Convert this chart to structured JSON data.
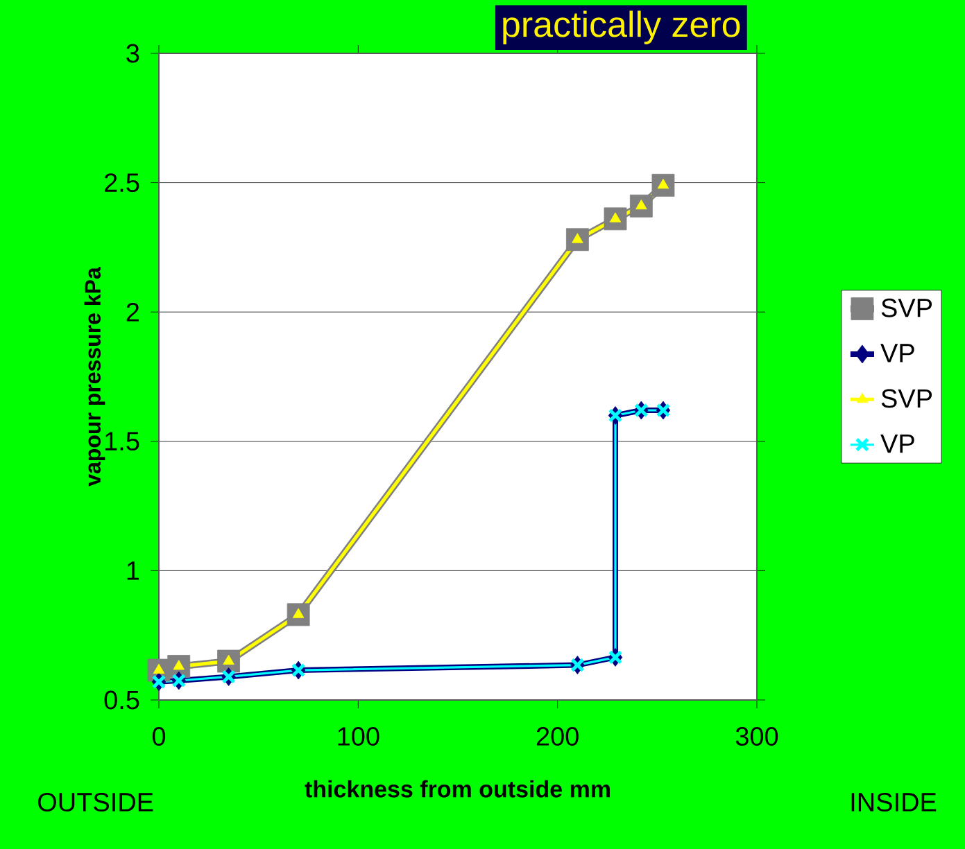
{
  "chart_data": {
    "type": "line",
    "title": "practically zero",
    "xlabel": "thickness from outside mm",
    "ylabel": "vapour pressure kPa",
    "annotations": [
      "OUTSIDE",
      "INSIDE"
    ],
    "x": [
      0,
      10,
      35,
      70,
      210,
      229,
      229,
      242,
      253
    ],
    "series": [
      {
        "name": "SVP",
        "color": "#808080",
        "marker": "square",
        "x": [
          0,
          10,
          35,
          70,
          210,
          229,
          242,
          253
        ],
        "values": [
          0.615,
          0.63,
          0.65,
          0.83,
          2.28,
          2.36,
          2.41,
          2.49
        ]
      },
      {
        "name": "VP",
        "color": "#000080",
        "marker": "diamond",
        "values": [
          0.57,
          0.575,
          0.59,
          0.615,
          0.635,
          0.665,
          1.6,
          1.62,
          1.62
        ]
      },
      {
        "name": "SVP",
        "color": "#ffff00",
        "marker": "triangle",
        "x": [
          0,
          10,
          35,
          70,
          210,
          229,
          242,
          253
        ],
        "values": [
          0.615,
          0.63,
          0.65,
          0.83,
          2.28,
          2.36,
          2.41,
          2.49
        ]
      },
      {
        "name": "VP",
        "color": "#00ffff",
        "marker": "cross",
        "values": [
          0.57,
          0.575,
          0.59,
          0.615,
          0.635,
          0.665,
          1.6,
          1.62,
          1.62
        ]
      }
    ],
    "xlim": [
      0,
      300
    ],
    "xticks": [
      0,
      100,
      200,
      300
    ],
    "ylim": [
      0.5,
      3
    ],
    "yticks": [
      0.5,
      1,
      1.5,
      2,
      2.5,
      3
    ],
    "grid": "y",
    "legend": "right",
    "line_style": "solid"
  }
}
